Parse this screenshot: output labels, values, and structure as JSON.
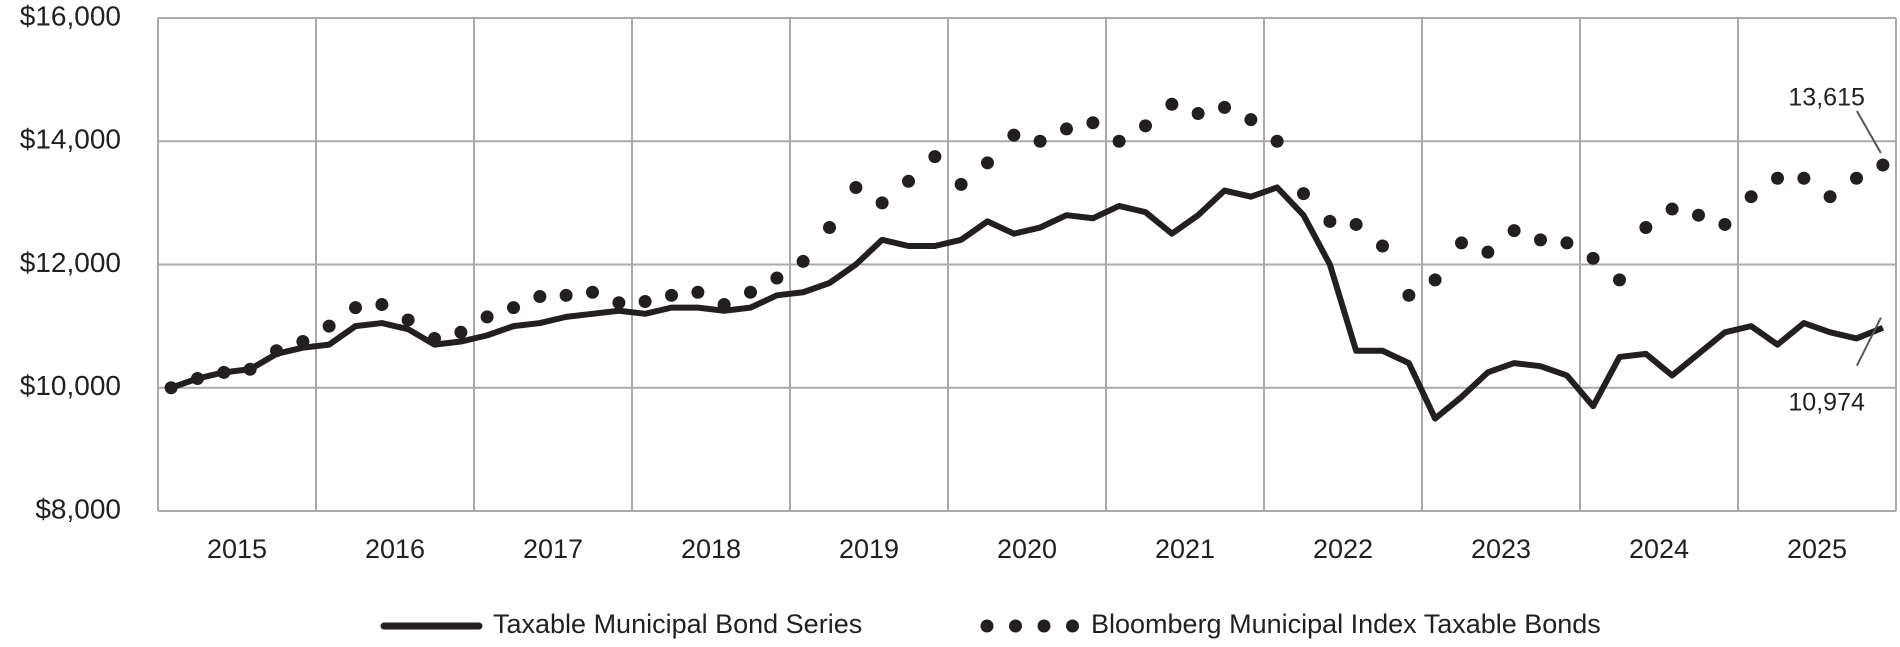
{
  "chart_data": {
    "type": "line",
    "x": [
      2015.083,
      2015.25,
      2015.417,
      2015.583,
      2015.75,
      2015.917,
      2016.083,
      2016.25,
      2016.417,
      2016.583,
      2016.75,
      2016.917,
      2017.083,
      2017.25,
      2017.417,
      2017.583,
      2017.75,
      2017.917,
      2018.083,
      2018.25,
      2018.417,
      2018.583,
      2018.75,
      2018.917,
      2019.083,
      2019.25,
      2019.417,
      2019.583,
      2019.75,
      2019.917,
      2020.083,
      2020.25,
      2020.417,
      2020.583,
      2020.75,
      2020.917,
      2021.083,
      2021.25,
      2021.417,
      2021.583,
      2021.75,
      2021.917,
      2022.083,
      2022.25,
      2022.417,
      2022.583,
      2022.75,
      2022.917,
      2023.083,
      2023.25,
      2023.417,
      2023.583,
      2023.75,
      2023.917,
      2024.083,
      2024.25,
      2024.417,
      2024.583,
      2024.75,
      2024.917,
      2025.083,
      2025.25,
      2025.417,
      2025.583,
      2025.75,
      2025.917
    ],
    "series": [
      {
        "name": "Taxable Municipal Bond Series",
        "color": "#231f20",
        "style": "line",
        "values": [
          10000,
          10150,
          10250,
          10300,
          10550,
          10650,
          10700,
          11000,
          11050,
          10950,
          10700,
          10750,
          10850,
          11000,
          11050,
          11150,
          11200,
          11250,
          11200,
          11300,
          11300,
          11250,
          11300,
          11500,
          11550,
          11700,
          12000,
          12400,
          12300,
          12300,
          12400,
          12700,
          12500,
          12600,
          12800,
          12750,
          12950,
          12850,
          12500,
          12800,
          13200,
          13100,
          13250,
          12800,
          12000,
          10600,
          10600,
          10400,
          9500,
          9850,
          10250,
          10400,
          10350,
          10200,
          9700,
          10500,
          10550,
          10200,
          10550,
          10900,
          11000,
          10700,
          11050,
          10900,
          10800,
          10974
        ],
        "value_labels": [
          null,
          null,
          null,
          null,
          null,
          null,
          null,
          null,
          null,
          null,
          null,
          null,
          null,
          null,
          null,
          null,
          null,
          null,
          null,
          null,
          null,
          null,
          null,
          null,
          null,
          null,
          null,
          null,
          null,
          null,
          null,
          null,
          null,
          null,
          null,
          null,
          null,
          null,
          null,
          null,
          null,
          null,
          null,
          null,
          null,
          null,
          null,
          null,
          null,
          null,
          null,
          null,
          null,
          null,
          null,
          null,
          null,
          null,
          null,
          null,
          null,
          null,
          null,
          null,
          null,
          "10,974"
        ]
      },
      {
        "name": "Bloomberg Municipal Index Taxable Bonds",
        "color": "#231f20",
        "style": "dots",
        "values": [
          10000,
          10150,
          10250,
          10300,
          10600,
          10750,
          11000,
          11300,
          11350,
          11100,
          10800,
          10900,
          11150,
          11300,
          11480,
          11500,
          11550,
          11380,
          11400,
          11500,
          11550,
          11350,
          11550,
          11780,
          12050,
          12600,
          13250,
          13000,
          13350,
          13750,
          13300,
          13650,
          14100,
          14000,
          14200,
          14300,
          14000,
          14250,
          14600,
          14450,
          14550,
          14350,
          14000,
          13150,
          12700,
          12650,
          12300,
          11500,
          11750,
          12350,
          12200,
          12550,
          12400,
          12350,
          12100,
          11750,
          12600,
          12900,
          12800,
          12650,
          13100,
          13400,
          13400,
          13100,
          13400,
          13615
        ],
        "value_labels": [
          null,
          null,
          null,
          null,
          null,
          null,
          null,
          null,
          null,
          null,
          null,
          null,
          null,
          null,
          null,
          null,
          null,
          null,
          null,
          null,
          null,
          null,
          null,
          null,
          null,
          null,
          null,
          null,
          null,
          null,
          null,
          null,
          null,
          null,
          null,
          null,
          null,
          null,
          null,
          null,
          null,
          null,
          null,
          null,
          null,
          null,
          null,
          null,
          null,
          null,
          null,
          null,
          null,
          null,
          null,
          null,
          null,
          null,
          null,
          null,
          null,
          null,
          null,
          null,
          null,
          "13,615"
        ]
      }
    ],
    "xlim": [
      2015,
      2026
    ],
    "xticks": [
      {
        "value": 2015.5,
        "label": "2015"
      },
      {
        "value": 2016.5,
        "label": "2016"
      },
      {
        "value": 2017.5,
        "label": "2017"
      },
      {
        "value": 2018.5,
        "label": "2018"
      },
      {
        "value": 2019.5,
        "label": "2019"
      },
      {
        "value": 2020.5,
        "label": "2020"
      },
      {
        "value": 2021.5,
        "label": "2021"
      },
      {
        "value": 2022.5,
        "label": "2022"
      },
      {
        "value": 2023.5,
        "label": "2023"
      },
      {
        "value": 2024.5,
        "label": "2024"
      },
      {
        "value": 2025.5,
        "label": "2025"
      }
    ],
    "xgrid": [
      2015,
      2016,
      2017,
      2018,
      2019,
      2020,
      2021,
      2022,
      2023,
      2024,
      2025,
      2026
    ],
    "ylim": [
      8000,
      16000
    ],
    "yticks": [
      {
        "value": 8000,
        "label": "$8,000"
      },
      {
        "value": 10000,
        "label": "$10,000"
      },
      {
        "value": 12000,
        "label": "$12,000"
      },
      {
        "value": 14000,
        "label": "$14,000"
      },
      {
        "value": 16000,
        "label": "$16,000"
      }
    ],
    "grid": true,
    "legend": "bottom"
  }
}
